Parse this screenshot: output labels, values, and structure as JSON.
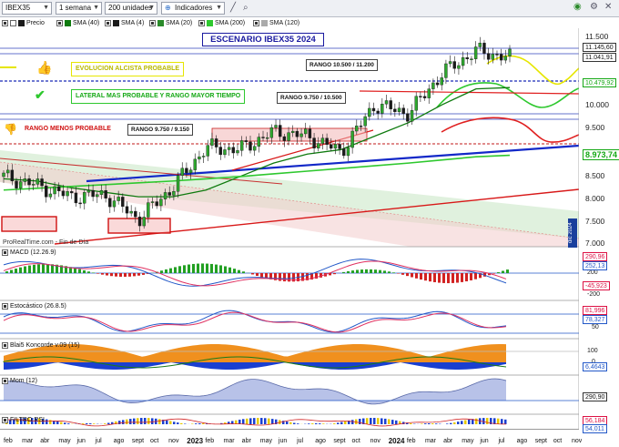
{
  "toolbar": {
    "symbol": "IBEX35",
    "period": "1 semana",
    "units": "200 unidades",
    "indicators": "Indicadores"
  },
  "legend": {
    "price": "Precio",
    "sma40": "SMA (40)",
    "sma4": "SMA (4)",
    "sma20": "SMA (20)",
    "sma200": "SMA (200)",
    "sma120": "SMA (120)"
  },
  "annotations": {
    "title": "ESCENARIO IBEX35 2024",
    "bullish": "EVOLUCION ALCISTA PROBABLE",
    "lateral": "LATERAL MAS PROBABLE Y RANGO MAYOR TIEMPO",
    "less_probable": "RANGO MENOS PROBABLE",
    "range_high": "RANGO 10.500 / 11.200",
    "range_mid": "RANGO 9.750 / 10.500",
    "range_low": "RANGO 9.750 / 9.150",
    "watermark": "ProRealTime.com - Fin de Día",
    "vertical_tag": "dic 2024"
  },
  "panels": {
    "macd": "MACD (12.26.9)",
    "stoch": "Estocástico (26.8.5)",
    "koncorde": "Blai5 Koncorde v.09 (15)",
    "mom": "Mom (12)",
    "rsi": "FILTRO RSI"
  },
  "price_axis": {
    "ticks": [
      "11.500",
      "10.000",
      "9.500",
      "8.500",
      "8.000",
      "7.500",
      "7.000"
    ],
    "tags": [
      {
        "text": "11.145,60",
        "color": "#1a1a1a"
      },
      {
        "text": "11.041,91",
        "color": "#1a1a1a"
      },
      {
        "text": "10.479,92",
        "color": "#14a814"
      },
      {
        "text": "8.973,74",
        "color": "#14a814"
      }
    ]
  },
  "indicator_axis": {
    "macd": {
      "ticks": [
        "200",
        "-200"
      ],
      "tags": [
        "290,96",
        "252,13",
        "-45,923"
      ]
    },
    "stoch": {
      "ticks": [
        "50"
      ],
      "tags": [
        "81,996",
        "78,327"
      ]
    },
    "koncorde": {
      "ticks": [
        "100",
        "0"
      ],
      "tags": [
        "6,4643"
      ]
    },
    "mom": {
      "tags": [
        "290,90"
      ]
    },
    "rsi": {
      "tags": [
        "56,184",
        "54,011"
      ]
    }
  },
  "xaxis": {
    "labels": [
      {
        "t": "feb",
        "bold": false
      },
      {
        "t": "mar",
        "bold": false
      },
      {
        "t": "abr",
        "bold": false
      },
      {
        "t": "may",
        "bold": false
      },
      {
        "t": "jun",
        "bold": false
      },
      {
        "t": "jul",
        "bold": false
      },
      {
        "t": "ago",
        "bold": false
      },
      {
        "t": "sept",
        "bold": false
      },
      {
        "t": "oct",
        "bold": false
      },
      {
        "t": "nov",
        "bold": false
      },
      {
        "t": "2023",
        "bold": true
      },
      {
        "t": "feb",
        "bold": false
      },
      {
        "t": "mar",
        "bold": false
      },
      {
        "t": "abr",
        "bold": false
      },
      {
        "t": "may",
        "bold": false
      },
      {
        "t": "jun",
        "bold": false
      },
      {
        "t": "jul",
        "bold": false
      },
      {
        "t": "ago",
        "bold": false
      },
      {
        "t": "sept",
        "bold": false
      },
      {
        "t": "oct",
        "bold": false
      },
      {
        "t": "nov",
        "bold": false
      },
      {
        "t": "2024",
        "bold": true
      },
      {
        "t": "feb",
        "bold": false
      },
      {
        "t": "mar",
        "bold": false
      },
      {
        "t": "abr",
        "bold": false
      },
      {
        "t": "may",
        "bold": false
      },
      {
        "t": "jun",
        "bold": false
      },
      {
        "t": "jul",
        "bold": false
      },
      {
        "t": "ago",
        "bold": false
      },
      {
        "t": "sept",
        "bold": false
      },
      {
        "t": "oct",
        "bold": false
      },
      {
        "t": "nov",
        "bold": false
      }
    ]
  },
  "chart_data": {
    "type": "line",
    "title": "ESCENARIO IBEX35 2024",
    "x": [
      "2022-02",
      "2022-04",
      "2022-06",
      "2022-08",
      "2022-10",
      "2022-12",
      "2023-02",
      "2023-04",
      "2023-06",
      "2023-08",
      "2023-10",
      "2023-12",
      "2024-02",
      "2024-04",
      "2024-06",
      "2024-07"
    ],
    "series": [
      {
        "name": "Precio",
        "values": [
          8500,
          8300,
          8050,
          8100,
          7550,
          8250,
          9150,
          9100,
          9500,
          9400,
          9050,
          10100,
          9900,
          10800,
          11300,
          11145.6
        ]
      },
      {
        "name": "SMA (40)",
        "values": [
          8450,
          8400,
          8250,
          8150,
          8050,
          8050,
          8200,
          8500,
          8800,
          9000,
          9100,
          9400,
          9700,
          10100,
          10450,
          10479.92
        ]
      },
      {
        "name": "SMA (200)",
        "values": [
          8200,
          8240,
          8280,
          8320,
          8360,
          8400,
          8450,
          8500,
          8560,
          8620,
          8680,
          8740,
          8800,
          8870,
          8940,
          8973.74
        ]
      }
    ],
    "ylim": [
      7000,
      11800
    ],
    "grid": false
  },
  "colors": {
    "bullish_line": "#e6e600",
    "lateral_line": "#2ec82e",
    "bearish_line": "#e02020",
    "trendline": "#1228c8",
    "sma40": "#0e7a0e",
    "sma200": "#2ec82e"
  },
  "icons": [
    "thumbs-up-icon",
    "check-icon",
    "thumbs-down-icon"
  ]
}
